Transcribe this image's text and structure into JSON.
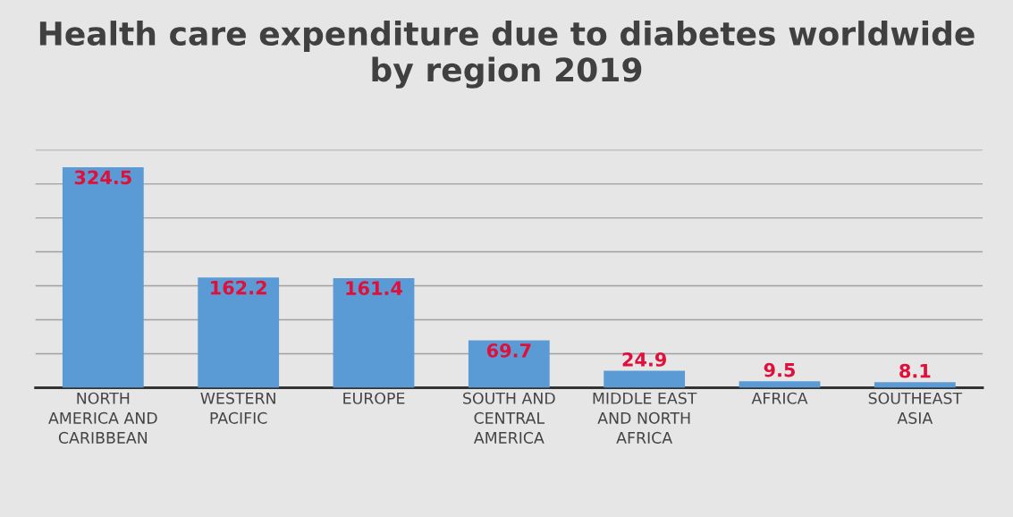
{
  "chart_data": {
    "type": "bar",
    "title": "Health care expenditure due to diabetes worldwide by region 2019",
    "categories": [
      "NORTH AMERICA AND CARIBBEAN",
      "WESTERN PACIFIC",
      "EUROPE",
      "SOUTH AND CENTRAL AMERICA",
      "MIDDLE EAST AND NORTH AFRICA",
      "AFRICA",
      "SOUTHEAST ASIA"
    ],
    "values": [
      324.5,
      162.2,
      161.4,
      69.7,
      24.9,
      9.5,
      8.1
    ],
    "color": "#5b9bd5",
    "data_labels": true,
    "grid": "y",
    "tick_labels": "x",
    "ylim": [
      0,
      350
    ],
    "yticks": [
      {
        "value": 0,
        "label": null
      },
      {
        "value": 50,
        "label": null
      },
      {
        "value": 100,
        "label": null
      },
      {
        "value": 150,
        "label": null
      },
      {
        "value": 200,
        "label": null
      },
      {
        "value": 250,
        "label": null
      },
      {
        "value": 300,
        "label": null
      },
      {
        "value": 350,
        "label": null
      }
    ]
  }
}
